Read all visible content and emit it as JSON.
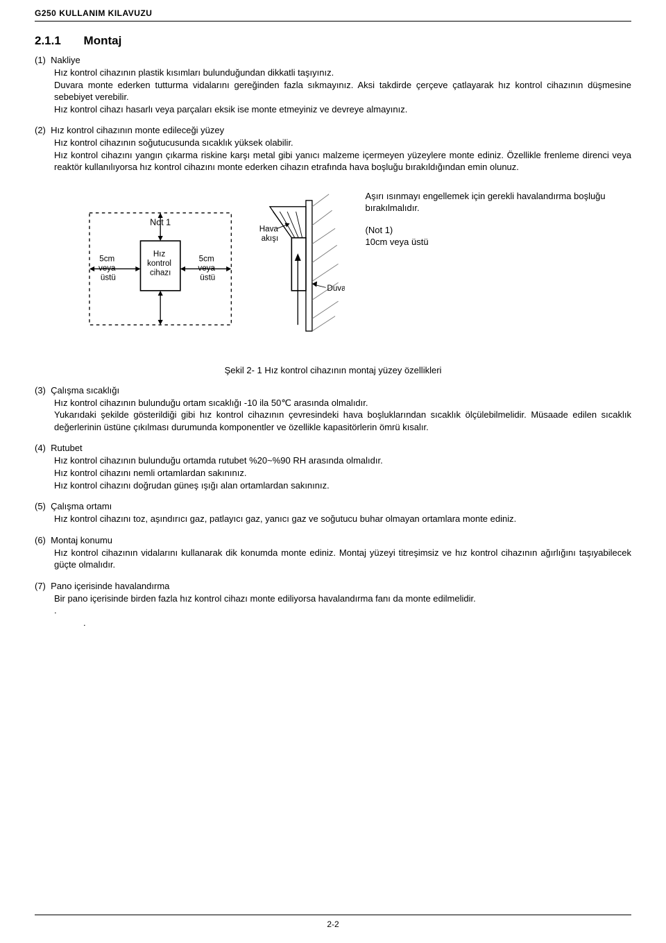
{
  "header": {
    "title": "G250 KULLANIM KILAVUZU"
  },
  "section": {
    "number": "2.1.1",
    "title": "Montaj"
  },
  "items": [
    {
      "num": "(1)",
      "label": "Nakliye",
      "body": "Hız kontrol cihazının plastik kısımları bulunduğundan dikkatli taşıyınız.\nDuvara monte ederken tutturma vidalarını gereğinden fazla sıkmayınız. Aksi takdirde çerçeve çatlayarak hız kontrol cihazının düşmesine sebebiyet verebilir.\nHız kontrol cihazı hasarlı veya parçaları eksik ise monte etmeyiniz ve devreye almayınız."
    },
    {
      "num": "(2)",
      "label": "Hız kontrol cihazının monte edileceği yüzey",
      "body": "Hız kontrol cihazının soğutucusunda sıcaklık yüksek olabilir.\nHız kontrol cihazını yangın çıkarma riskine karşı metal gibi yanıcı malzeme içermeyen yüzeylere monte ediniz. Özellikle frenleme direnci veya reaktör kullanılıyorsa hız kontrol cihazını monte ederken cihazın etrafında hava boşluğu bırakıldığından emin olunuz."
    },
    {
      "num": "(3)",
      "label": "Çalışma sıcaklığı",
      "body": "Hız kontrol cihazının bulunduğu ortam sıcaklığı -10 ila 50℃ arasında olmalıdır.\nYukarıdaki şekilde gösterildiği gibi hız kontrol cihazının çevresindeki hava boşluklarından sıcaklık ölçülebilmelidir. Müsaade edilen sıcaklık değerlerinin üstüne çıkılması durumunda komponentler ve özellikle kapasitörlerin ömrü kısalır."
    },
    {
      "num": "(4)",
      "label": "Rutubet",
      "body": "Hız kontrol cihazının bulunduğu ortamda rutubet %20~%90 RH arasında olmalıdır.\nHız kontrol cihazını nemli ortamlardan sakınınız.\nHız kontrol cihazını doğrudan güneş ışığı alan ortamlardan sakınınız."
    },
    {
      "num": "(5)",
      "label": "Çalışma ortamı",
      "body": "Hız kontrol cihazını toz, aşındırıcı gaz, patlayıcı gaz, yanıcı gaz ve soğutucu buhar olmayan ortamlara monte ediniz."
    },
    {
      "num": "(6)",
      "label": "Montaj konumu",
      "body": "Hız kontrol cihazının vidalarını kullanarak dik konumda monte ediniz. Montaj yüzeyi titreşimsiz ve hız kontrol cihazının ağırlığını taşıyabilecek güçte olmalıdır."
    },
    {
      "num": "(7)",
      "label": "Pano içerisinde havalandırma",
      "body": "Bir pano içerisinde birden fazla hız kontrol cihazı monte ediliyorsa havalandırma fanı da monte edilmelidir."
    }
  ],
  "diagram": {
    "labels": {
      "note1": "Not 1",
      "device": "Hız\nkontrol\ncihazı",
      "left_gap": "5cm\nveya\nüstü",
      "right_gap": "5cm\nveya\nüstü",
      "airflow": "Hava\nakışı",
      "wall": "Duvar"
    },
    "side_text": {
      "line1": "Aşırı ısınmayı engellemek için gerekli havalandırma boşluğu bırakılmalıdır.",
      "note_label": "(Not 1)",
      "note_value": "10cm veya üstü"
    },
    "colors": {
      "stroke": "#000000",
      "fill": "#ffffff",
      "hatch": "#777777"
    },
    "caption": "Şekil 2- 1 Hız kontrol cihazının montaj yüzey özellikleri"
  },
  "footer": {
    "page_number": "2-2"
  }
}
